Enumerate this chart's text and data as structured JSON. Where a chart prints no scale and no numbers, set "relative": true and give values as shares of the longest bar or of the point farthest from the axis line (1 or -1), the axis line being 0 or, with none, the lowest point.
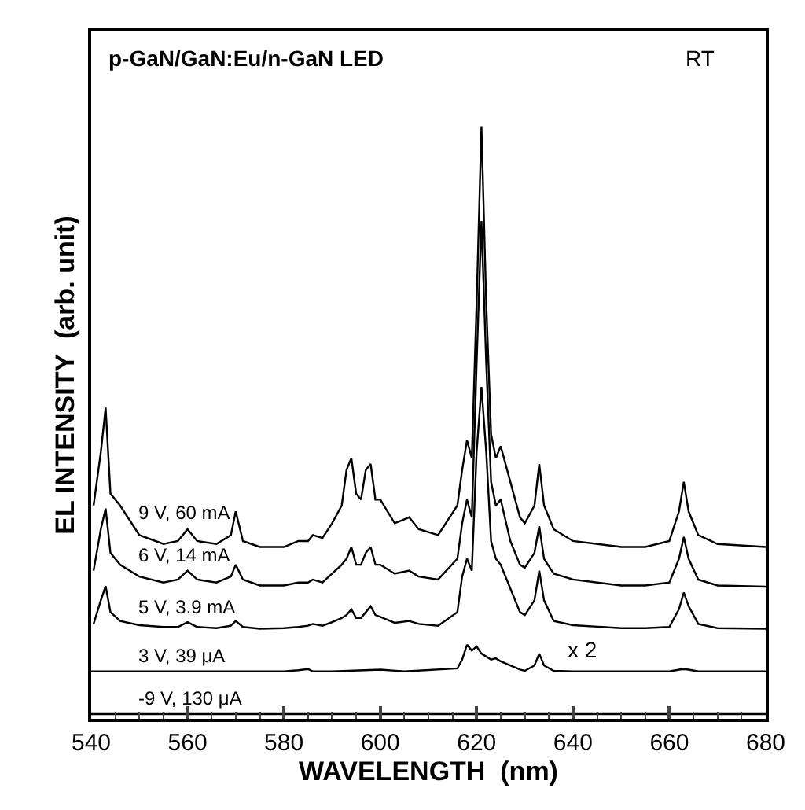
{
  "chart_data": {
    "type": "line",
    "relative": true,
    "title": "p-GaN/GaN:Eu/n-GaN LED",
    "xlabel": "WAVELENGTH  (nm)",
    "ylabel": "EL INTENSITY  (arb. unit)",
    "xlim": [
      540,
      680
    ],
    "xticks": [
      540,
      560,
      580,
      600,
      620,
      640,
      660,
      680
    ],
    "legend": false,
    "marker": "none",
    "line_style": "solid",
    "annotations": [
      "RT",
      "x 2"
    ],
    "series": [
      {
        "name": "9 V, 60 mA",
        "color": "#000000",
        "x": [
          540.5,
          542,
          543,
          544,
          546,
          550,
          555,
          558,
          560,
          562,
          566,
          569,
          570,
          571.5,
          575,
          580,
          583,
          585,
          586,
          588,
          590,
          592,
          593,
          594,
          595,
          596,
          597,
          598,
          599,
          600,
          603,
          606,
          608,
          612,
          616,
          617,
          618,
          619,
          620,
          621,
          622,
          623,
          624,
          625,
          627,
          629,
          630,
          632,
          633,
          634,
          636,
          640,
          650,
          655,
          660,
          662,
          663,
          664,
          666,
          670,
          680
        ],
        "values": [
          0.36,
          0.45,
          0.525,
          0.38,
          0.36,
          0.31,
          0.295,
          0.3,
          0.32,
          0.3,
          0.295,
          0.31,
          0.35,
          0.3,
          0.29,
          0.29,
          0.3,
          0.3,
          0.31,
          0.305,
          0.33,
          0.36,
          0.42,
          0.44,
          0.38,
          0.37,
          0.42,
          0.43,
          0.37,
          0.37,
          0.33,
          0.34,
          0.32,
          0.31,
          0.36,
          0.42,
          0.47,
          0.44,
          0.7,
          1.0,
          0.7,
          0.48,
          0.44,
          0.46,
          0.4,
          0.34,
          0.33,
          0.36,
          0.43,
          0.36,
          0.32,
          0.3,
          0.29,
          0.29,
          0.3,
          0.35,
          0.4,
          0.35,
          0.31,
          0.295,
          0.29
        ]
      },
      {
        "name": "6 V, 14 mA",
        "color": "#000000",
        "x": [
          540.5,
          542,
          543,
          544,
          546,
          550,
          555,
          558,
          560,
          562,
          566,
          569,
          570,
          571.5,
          575,
          580,
          583,
          585,
          586,
          588,
          590,
          592,
          593,
          594,
          595,
          596,
          597,
          598,
          599,
          600,
          603,
          606,
          608,
          612,
          616,
          617,
          618,
          619,
          620,
          621,
          622,
          623,
          624,
          625,
          627,
          629,
          630,
          632,
          633,
          634,
          636,
          640,
          650,
          655,
          660,
          662,
          663,
          664,
          666,
          670,
          680
        ],
        "values": [
          0.25,
          0.32,
          0.355,
          0.28,
          0.26,
          0.24,
          0.23,
          0.235,
          0.25,
          0.235,
          0.23,
          0.24,
          0.26,
          0.235,
          0.225,
          0.225,
          0.23,
          0.23,
          0.235,
          0.23,
          0.245,
          0.26,
          0.27,
          0.29,
          0.26,
          0.26,
          0.28,
          0.29,
          0.26,
          0.26,
          0.245,
          0.25,
          0.24,
          0.235,
          0.27,
          0.33,
          0.37,
          0.34,
          0.6,
          0.84,
          0.6,
          0.4,
          0.36,
          0.37,
          0.3,
          0.26,
          0.255,
          0.28,
          0.325,
          0.27,
          0.245,
          0.235,
          0.225,
          0.225,
          0.23,
          0.27,
          0.307,
          0.27,
          0.235,
          0.225,
          0.223
        ]
      },
      {
        "name": "5 V, 3.9 mA",
        "color": "#000000",
        "x": [
          540.5,
          542,
          543,
          544,
          546,
          550,
          555,
          558,
          560,
          562,
          566,
          569,
          570,
          571.5,
          575,
          580,
          583,
          585,
          586,
          588,
          590,
          592,
          593,
          594,
          595,
          596,
          597,
          598,
          599,
          600,
          603,
          606,
          608,
          612,
          616,
          617,
          618,
          619,
          620,
          621,
          622,
          623,
          624,
          625,
          627,
          629,
          630,
          632,
          633,
          634,
          636,
          640,
          650,
          655,
          660,
          662,
          663,
          664,
          666,
          670,
          680
        ],
        "values": [
          0.16,
          0.2,
          0.224,
          0.18,
          0.165,
          0.158,
          0.155,
          0.155,
          0.163,
          0.155,
          0.153,
          0.157,
          0.165,
          0.155,
          0.152,
          0.153,
          0.155,
          0.157,
          0.16,
          0.157,
          0.163,
          0.17,
          0.175,
          0.185,
          0.17,
          0.17,
          0.18,
          0.19,
          0.175,
          0.172,
          0.162,
          0.165,
          0.16,
          0.157,
          0.18,
          0.24,
          0.27,
          0.25,
          0.45,
          0.56,
          0.45,
          0.3,
          0.27,
          0.26,
          0.22,
          0.18,
          0.175,
          0.2,
          0.25,
          0.2,
          0.165,
          0.158,
          0.153,
          0.153,
          0.155,
          0.185,
          0.213,
          0.19,
          0.16,
          0.153,
          0.152
        ]
      },
      {
        "name": "3 V, 39 μA",
        "color": "#000000",
        "x": [
          540,
          560,
          580,
          583,
          585,
          586,
          590,
          600,
          605,
          616,
          617,
          618,
          619,
          620,
          621,
          622,
          623,
          624,
          625,
          627,
          629,
          630,
          632,
          633,
          634,
          636,
          640,
          660,
          662,
          663,
          664,
          666,
          680
        ],
        "values": [
          0.08,
          0.08,
          0.08,
          0.082,
          0.084,
          0.08,
          0.08,
          0.083,
          0.08,
          0.085,
          0.1,
          0.125,
          0.115,
          0.122,
          0.11,
          0.105,
          0.1,
          0.102,
          0.097,
          0.09,
          0.083,
          0.081,
          0.09,
          0.11,
          0.09,
          0.081,
          0.08,
          0.08,
          0.083,
          0.084,
          0.083,
          0.08,
          0.08
        ]
      },
      {
        "name": "-9 V, 130 μA",
        "color": "#000000",
        "x": [
          540,
          680
        ],
        "values": [
          0.008,
          0.008
        ]
      }
    ]
  }
}
